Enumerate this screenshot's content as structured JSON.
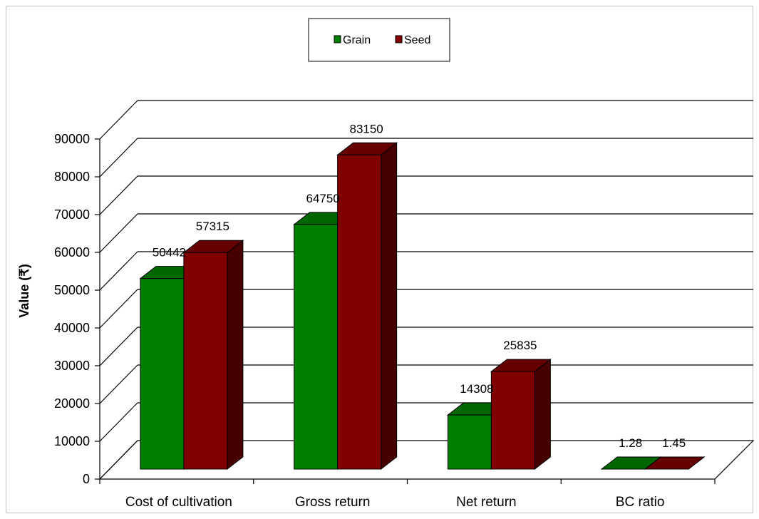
{
  "chart_data": {
    "type": "bar",
    "title": "",
    "xlabel": "",
    "ylabel": "Value (₹)",
    "categories": [
      "Cost of cultivation",
      "Gross return",
      "Net return",
      "BC ratio"
    ],
    "series": [
      {
        "name": "Grain",
        "values": [
          50442,
          64750,
          14308,
          1.28
        ],
        "labels": [
          "50442",
          "64750",
          "14308",
          "1.28"
        ],
        "color": "#008000"
      },
      {
        "name": "Seed",
        "values": [
          57315,
          83150,
          25835,
          1.45
        ],
        "labels": [
          "57315",
          "83150",
          "25835",
          "1.45"
        ],
        "color": "#800000"
      }
    ],
    "ylim": [
      0,
      90000
    ],
    "yticks": [
      "0",
      "10000",
      "20000",
      "30000",
      "40000",
      "50000",
      "60000",
      "70000",
      "80000",
      "90000"
    ],
    "grid": true,
    "legend_position": "top-center",
    "style": "3d-clustered-column"
  }
}
